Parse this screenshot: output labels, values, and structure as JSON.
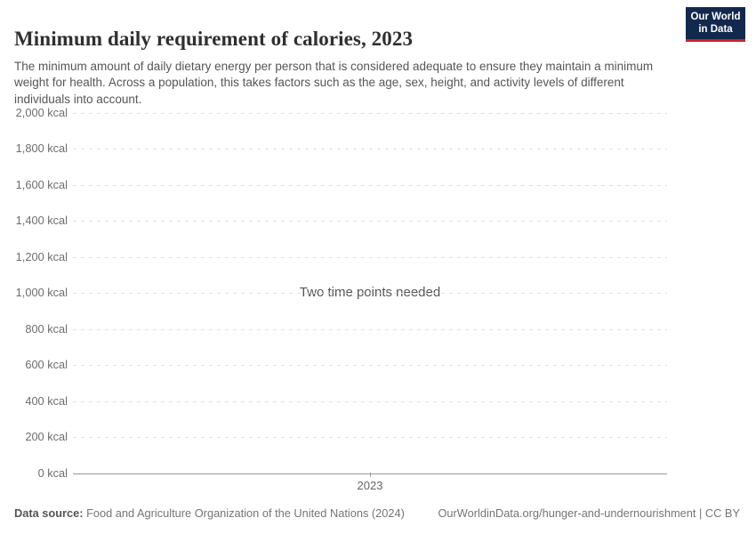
{
  "header": {
    "title": "Minimum daily requirement of calories, 2023",
    "subtitle": "The minimum amount of daily dietary energy per person that is considered adequate to ensure they maintain a minimum weight for health. Across a population, this takes factors such as the age, sex, height, and activity levels of different individuals into account.",
    "logo": {
      "line1": "Our World",
      "line2": "in Data"
    }
  },
  "chart_data": {
    "type": "line",
    "title": "Minimum daily requirement of calories, 2023",
    "series": [],
    "empty_message": "Two time points needed",
    "ylim": [
      0,
      2000
    ],
    "ytick_step": 200,
    "yticks": [
      "2,000 kcal",
      "1,800 kcal",
      "1,600 kcal",
      "1,400 kcal",
      "1,200 kcal",
      "1,000 kcal",
      "800 kcal",
      "600 kcal",
      "400 kcal",
      "200 kcal",
      "0 kcal"
    ],
    "xticks": [
      "2023"
    ],
    "grid": "horizontal dashed gridlines, solid baseline at 0, legend none"
  },
  "footer": {
    "datasource_label": "Data source:",
    "datasource_value": " Food and Agriculture Organization of the United Nations (2024)",
    "link": "OurWorldinData.org/hunger-and-undernourishment | CC BY"
  },
  "colors": {
    "logo_background": "#12294d",
    "logo_accent": "#c7252b",
    "gridline": "#e2e2e2",
    "axis_line": "#999999",
    "title_text": "#2f2f2f",
    "muted_text": "#6e6e6e"
  }
}
